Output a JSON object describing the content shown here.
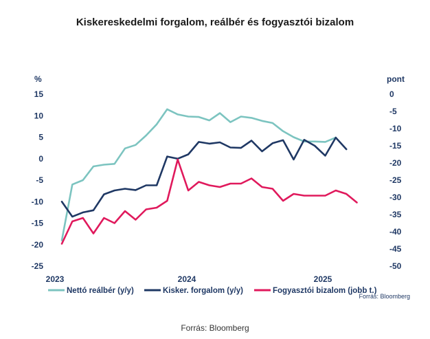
{
  "title": "Kiskereskedelmi forgalom, reálbér és fogyasztói bizalom",
  "source_bottom": "Forrás: Bloomberg",
  "chart_data": {
    "type": "line",
    "source_label": "Forrás: Bloomberg",
    "y_left": {
      "unit": "%",
      "min": -25,
      "max": 15,
      "ticks": [
        15,
        10,
        5,
        0,
        -5,
        -10,
        -15,
        -20,
        -25
      ]
    },
    "y_right": {
      "unit": "pont",
      "min": -50,
      "max": 0,
      "ticks": [
        0,
        -5,
        -10,
        -15,
        -20,
        -25,
        -30,
        -35,
        -40,
        -45,
        -50
      ]
    },
    "x_labels": [
      "2023",
      "2024",
      "2025"
    ],
    "x_start": "2023-01",
    "series": [
      {
        "name": "Nettó reálbér (y/y)",
        "axis": "left",
        "color": "#7cc4c0",
        "values": [
          -19.0,
          -6.0,
          -5.0,
          -1.8,
          -1.4,
          -1.2,
          2.4,
          3.2,
          5.4,
          8.0,
          11.5,
          10.3,
          9.8,
          9.7,
          8.9,
          10.6,
          8.5,
          9.8,
          9.5,
          8.8,
          8.3,
          6.4,
          5.0,
          4.0,
          4.0,
          3.9,
          4.9
        ]
      },
      {
        "name": "Kisker. forgalom (y/y)",
        "axis": "left",
        "color": "#1f3864",
        "values": [
          -10.0,
          -13.5,
          -12.5,
          -12.0,
          -8.3,
          -7.4,
          -7.0,
          -7.3,
          -6.2,
          -6.2,
          0.5,
          0.0,
          1.0,
          3.9,
          3.5,
          3.8,
          2.6,
          2.5,
          4.2,
          1.7,
          3.6,
          4.3,
          -0.2,
          4.4,
          3.0,
          0.7,
          4.9,
          2.2
        ]
      },
      {
        "name": "Fogyasztói bizalom (jobb t.)",
        "axis": "right",
        "color": "#e0195c",
        "values": [
          -43.5,
          -37.0,
          -36.0,
          -40.5,
          -36.0,
          -37.5,
          -34.0,
          -36.5,
          -33.5,
          -33.0,
          -31.0,
          -19.0,
          -28.0,
          -25.5,
          -26.5,
          -27.0,
          -26.0,
          -26.0,
          -24.5,
          -27.0,
          -27.5,
          -31.0,
          -29.0,
          -29.5,
          -29.5,
          -29.5,
          -28.0,
          -29.0,
          -31.5
        ]
      }
    ]
  }
}
